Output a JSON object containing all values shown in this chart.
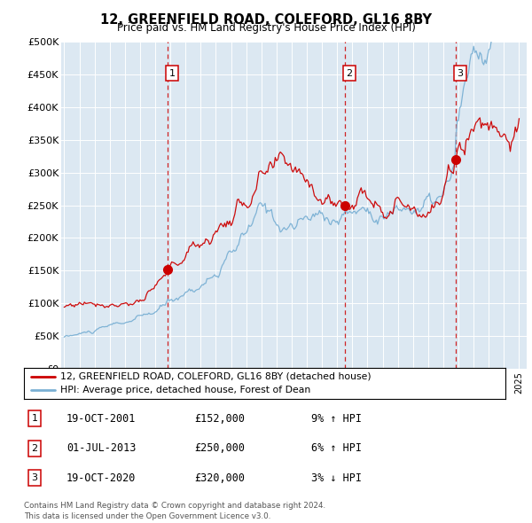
{
  "title": "12, GREENFIELD ROAD, COLEFORD, GL16 8BY",
  "subtitle": "Price paid vs. HM Land Registry's House Price Index (HPI)",
  "ylim": [
    0,
    500000
  ],
  "yticks": [
    0,
    50000,
    100000,
    150000,
    200000,
    250000,
    300000,
    350000,
    400000,
    450000,
    500000
  ],
  "ytick_labels": [
    "£0",
    "£50K",
    "£100K",
    "£150K",
    "£200K",
    "£250K",
    "£300K",
    "£350K",
    "£400K",
    "£450K",
    "£500K"
  ],
  "bg_color": "#dce8f2",
  "red_color": "#cc0000",
  "blue_color": "#7ab0d4",
  "sale_points": [
    {
      "date_num": 2001.8,
      "price": 152000,
      "label": "1"
    },
    {
      "date_num": 2013.5,
      "price": 250000,
      "label": "2"
    },
    {
      "date_num": 2020.8,
      "price": 320000,
      "label": "3"
    }
  ],
  "legend_entries": [
    {
      "label": "12, GREENFIELD ROAD, COLEFORD, GL16 8BY (detached house)",
      "color": "#cc0000"
    },
    {
      "label": "HPI: Average price, detached house, Forest of Dean",
      "color": "#7ab0d4"
    }
  ],
  "table_rows": [
    {
      "num": "1",
      "date": "19-OCT-2001",
      "price": "£152,000",
      "hpi": "9% ↑ HPI"
    },
    {
      "num": "2",
      "date": "01-JUL-2013",
      "price": "£250,000",
      "hpi": "6% ↑ HPI"
    },
    {
      "num": "3",
      "date": "19-OCT-2020",
      "price": "£320,000",
      "hpi": "3% ↓ HPI"
    }
  ],
  "footer": "Contains HM Land Registry data © Crown copyright and database right 2024.\nThis data is licensed under the Open Government Licence v3.0."
}
